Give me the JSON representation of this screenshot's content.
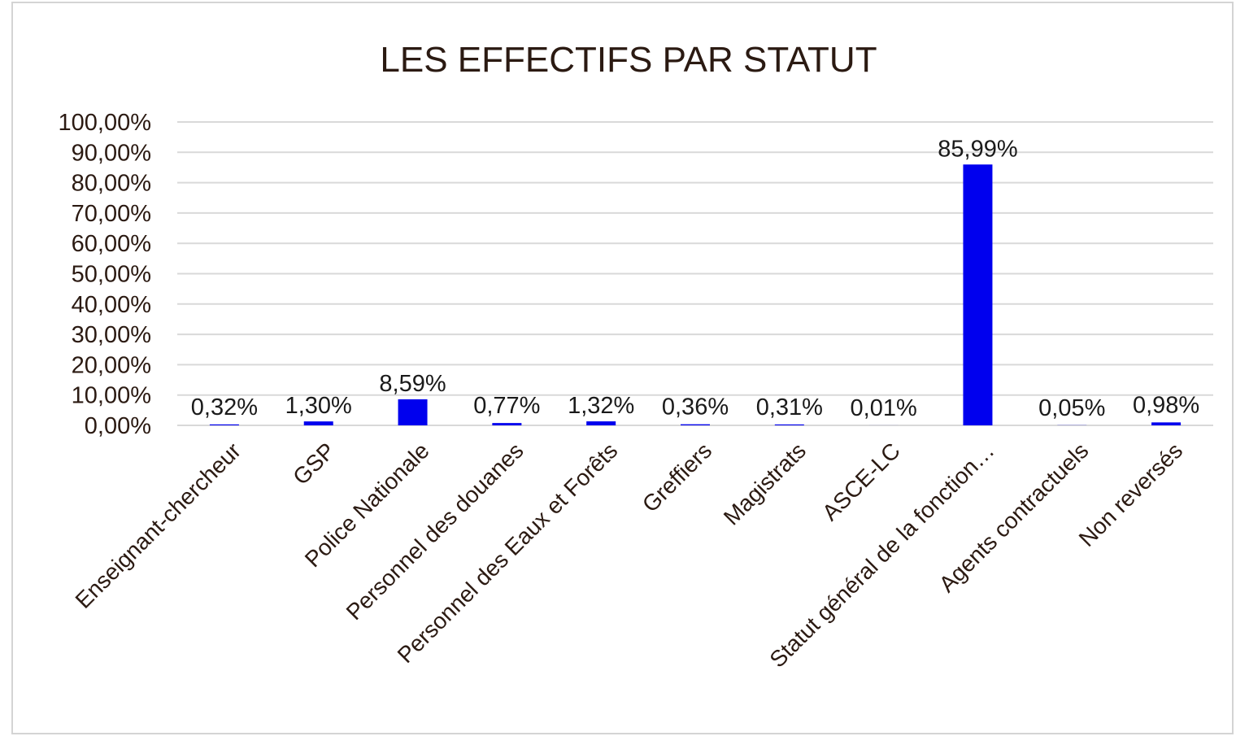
{
  "chart_data": {
    "type": "bar",
    "title": "LES EFFECTIFS PAR STATUT",
    "xlabel": "",
    "ylabel": "",
    "categories": [
      "Enseignant-chercheur",
      "GSP",
      "Police Nationale",
      "Personnel des douanes",
      "Personnel des Eaux et Forêts",
      "Greffiers",
      "Magistrats",
      "ASCE-LC",
      "Statut général de la fonction…",
      "Agents contractuels",
      "Non reversés"
    ],
    "values": [
      0.32,
      1.3,
      8.59,
      0.77,
      1.32,
      0.36,
      0.31,
      0.01,
      85.99,
      0.05,
      0.98
    ],
    "data_labels": [
      "0,32%",
      "1,30%",
      "8,59%",
      "0,77%",
      "1,32%",
      "0,36%",
      "0,31%",
      "0,01%",
      "85,99%",
      "0,05%",
      "0,98%"
    ],
    "ylim": [
      0,
      100
    ],
    "yticks": [
      0,
      10,
      20,
      30,
      40,
      50,
      60,
      70,
      80,
      90,
      100
    ],
    "ytick_labels": [
      "0,00%",
      "10,00%",
      "20,00%",
      "30,00%",
      "40,00%",
      "50,00%",
      "60,00%",
      "70,00%",
      "80,00%",
      "90,00%",
      "100,00%"
    ],
    "grid": true,
    "legend": "none",
    "colors": {
      "bar": "#0000ee",
      "grid": "#d9d9d9",
      "text": "#2b1a12",
      "border": "#d4d4d4"
    }
  }
}
